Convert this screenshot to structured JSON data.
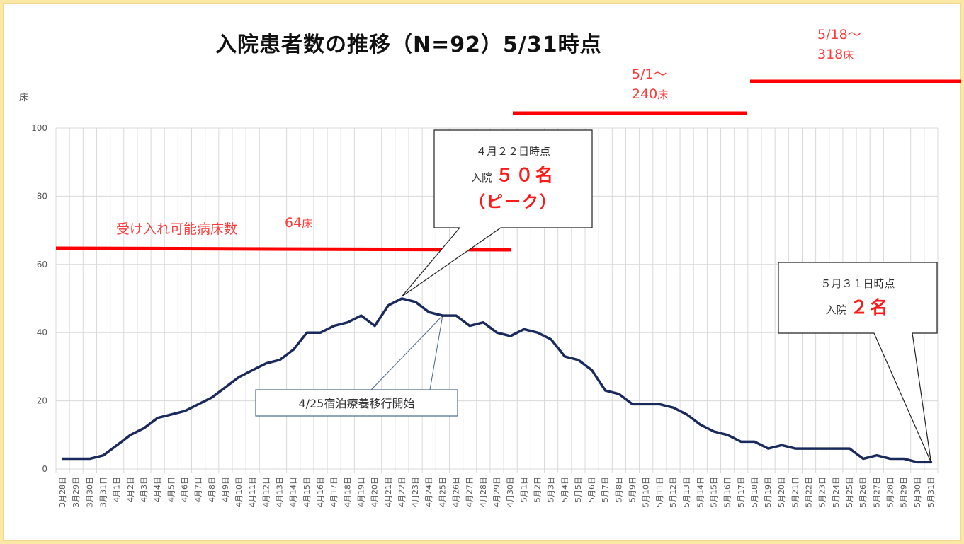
{
  "title": "入院患者数の推移（N=92）5/31時点",
  "y_unit": "床",
  "annotations": {
    "capacity_label": "受け入れ可能病床数",
    "capacity_1_value": "64",
    "capacity_1_unit": "床",
    "capacity_2_date": "5/1～",
    "capacity_2_value": "240",
    "capacity_2_unit": "床",
    "capacity_3_date": "5/18～",
    "capacity_3_value": "318",
    "capacity_3_unit": "床",
    "peak_line1": "４月２２日時点",
    "peak_line2_prefix": "入院",
    "peak_line2_value": "５０名",
    "peak_line3": "（ピーク）",
    "latest_line1": "５月３１日時点",
    "latest_line2_prefix": "入院",
    "latest_line2_value": "２名",
    "shift_note": "4/25宿泊療養移行開始"
  },
  "colors": {
    "series": "#1b2a5c",
    "capacity_lines": "#ff0000",
    "gridlines": "#d9d9d9"
  },
  "chart_data": {
    "type": "line",
    "title": "入院患者数の推移（N=92）5/31時点",
    "ylabel": "床",
    "xlabel": "",
    "ylim": [
      0,
      100
    ],
    "yticks": [
      0,
      20,
      40,
      60,
      80,
      100
    ],
    "grid": true,
    "categories": [
      "3月28日",
      "3月29日",
      "3月30日",
      "3月31日",
      "4月1日",
      "4月2日",
      "4月3日",
      "4月4日",
      "4月5日",
      "4月6日",
      "4月7日",
      "4月8日",
      "4月9日",
      "4月10日",
      "4月11日",
      "4月12日",
      "4月13日",
      "4月14日",
      "4月15日",
      "4月16日",
      "4月17日",
      "4月18日",
      "4月19日",
      "4月20日",
      "4月21日",
      "4月22日",
      "4月23日",
      "4月24日",
      "4月25日",
      "4月26日",
      "4月27日",
      "4月28日",
      "4月29日",
      "4月30日",
      "5月1日",
      "5月2日",
      "5月3日",
      "5月4日",
      "5月5日",
      "5月6日",
      "5月7日",
      "5月8日",
      "5月9日",
      "5月10日",
      "5月11日",
      "5月12日",
      "5月13日",
      "5月14日",
      "5月15日",
      "5月16日",
      "5月17日",
      "5月18日",
      "5月19日",
      "5月20日",
      "5月21日",
      "5月22日",
      "5月23日",
      "5月24日",
      "5月25日",
      "5月26日",
      "5月27日",
      "5月28日",
      "5月29日",
      "5月30日",
      "5月31日"
    ],
    "series": [
      {
        "values": [
          3,
          3,
          3,
          4,
          7,
          10,
          12,
          15,
          16,
          17,
          19,
          21,
          24,
          27,
          29,
          31,
          32,
          35,
          40,
          40,
          42,
          43,
          45,
          42,
          48,
          50,
          49,
          46,
          45,
          45,
          42,
          43,
          40,
          39,
          41,
          40,
          38,
          33,
          32,
          29,
          23,
          22,
          19,
          19,
          19,
          18,
          16,
          13,
          11,
          10,
          8,
          8,
          6,
          7,
          6,
          6,
          6,
          6,
          6,
          3,
          4,
          3,
          3,
          2,
          2
        ]
      }
    ],
    "capacity_segments": [
      {
        "label": "64床",
        "value": 64,
        "from": "3月28日",
        "to": "4月30日"
      },
      {
        "label": "240床",
        "value": 240,
        "from": "5月1日",
        "to": "5月17日"
      },
      {
        "label": "318床",
        "value": 318,
        "from": "5月18日",
        "to": "5月31日"
      }
    ]
  }
}
